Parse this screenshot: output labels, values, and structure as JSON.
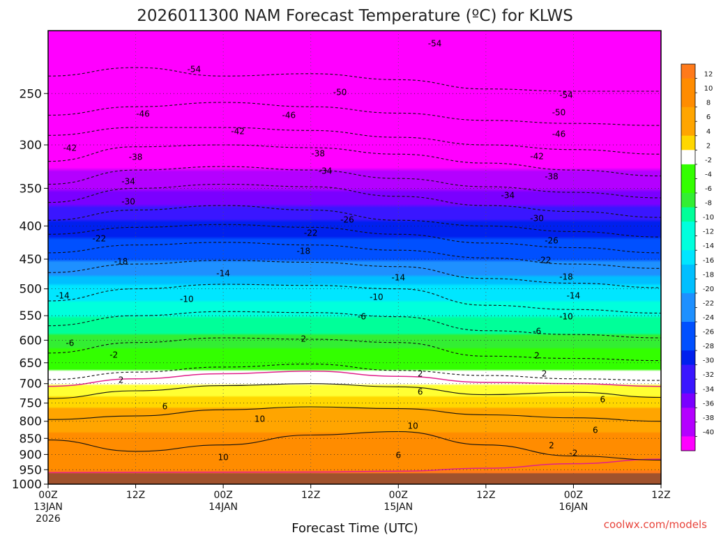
{
  "chart_data": {
    "type": "heatmap",
    "title": "2026011300 NAM Forecast Temperature (ºC) for KLWS",
    "xlabel": "Forecast Time (UTC)",
    "ylabel": "",
    "credit": "coolwx.com/models",
    "y_scale": "log",
    "y_inverted": true,
    "ylim": [
      1000,
      200
    ],
    "y_ticks": [
      "250",
      "300",
      "350",
      "400",
      "450",
      "500",
      "550",
      "600",
      "650",
      "700",
      "750",
      "800",
      "850",
      "900",
      "950",
      "1000"
    ],
    "xlim": [
      0,
      84
    ],
    "x_ticks": [
      {
        "h": 0,
        "label": "00Z",
        "sub": "13JAN",
        "sub2": "2026"
      },
      {
        "h": 12,
        "label": "12Z",
        "sub": "",
        "sub2": ""
      },
      {
        "h": 24,
        "label": "00Z",
        "sub": "14JAN",
        "sub2": ""
      },
      {
        "h": 36,
        "label": "12Z",
        "sub": "",
        "sub2": ""
      },
      {
        "h": 48,
        "label": "00Z",
        "sub": "15JAN",
        "sub2": ""
      },
      {
        "h": 60,
        "label": "12Z",
        "sub": "",
        "sub2": ""
      },
      {
        "h": 72,
        "label": "00Z",
        "sub": "16JAN",
        "sub2": ""
      },
      {
        "h": 84,
        "label": "12Z",
        "sub": "",
        "sub2": ""
      }
    ],
    "grid": true,
    "ground_level_hpa": 962,
    "colorbar": {
      "placement": "right",
      "labels": [
        "12",
        "10",
        "8",
        "6",
        "4",
        "2",
        "-2",
        "-4",
        "-6",
        "-8",
        "-10",
        "-12",
        "-14",
        "-16",
        "-18",
        "-20",
        "-22",
        "-24",
        "-26",
        "-28",
        "-30",
        "-32",
        "-34",
        "-36",
        "-38",
        "-40"
      ]
    },
    "contours": [
      {
        "t": -54,
        "p": [
          [
            0,
            235
          ],
          [
            12,
            228
          ],
          [
            24,
            235
          ],
          [
            36,
            233
          ],
          [
            48,
            238
          ],
          [
            60,
            246
          ],
          [
            72,
            248
          ],
          [
            84,
            248
          ]
        ]
      },
      {
        "t": -50,
        "p": [
          [
            0,
            270
          ],
          [
            12,
            262
          ],
          [
            24,
            258
          ],
          [
            36,
            262
          ],
          [
            48,
            268
          ],
          [
            60,
            275
          ],
          [
            72,
            278
          ],
          [
            84,
            280
          ]
        ]
      },
      {
        "t": -46,
        "p": [
          [
            0,
            290
          ],
          [
            12,
            282
          ],
          [
            24,
            282
          ],
          [
            36,
            285
          ],
          [
            48,
            292
          ],
          [
            60,
            300
          ],
          [
            72,
            305
          ],
          [
            84,
            310
          ]
        ]
      },
      {
        "t": -42,
        "p": [
          [
            0,
            318
          ],
          [
            12,
            302
          ],
          [
            24,
            300
          ],
          [
            36,
            303
          ],
          [
            48,
            310
          ],
          [
            60,
            320
          ],
          [
            72,
            328
          ],
          [
            84,
            335
          ]
        ]
      },
      {
        "t": -38,
        "p": [
          [
            0,
            345
          ],
          [
            12,
            328
          ],
          [
            24,
            324
          ],
          [
            36,
            328
          ],
          [
            48,
            338
          ],
          [
            60,
            348
          ],
          [
            72,
            355
          ],
          [
            84,
            362
          ]
        ]
      },
      {
        "t": -34,
        "p": [
          [
            0,
            368
          ],
          [
            12,
            350
          ],
          [
            24,
            345
          ],
          [
            36,
            348
          ],
          [
            48,
            360
          ],
          [
            60,
            372
          ],
          [
            72,
            380
          ],
          [
            84,
            388
          ]
        ]
      },
      {
        "t": -30,
        "p": [
          [
            0,
            392
          ],
          [
            12,
            378
          ],
          [
            24,
            372
          ],
          [
            36,
            378
          ],
          [
            48,
            392
          ],
          [
            60,
            400
          ],
          [
            72,
            408
          ],
          [
            84,
            416
          ]
        ]
      },
      {
        "t": -26,
        "p": [
          [
            0,
            412
          ],
          [
            12,
            402
          ],
          [
            24,
            398
          ],
          [
            36,
            402
          ],
          [
            48,
            412
          ],
          [
            60,
            425
          ],
          [
            72,
            432
          ],
          [
            84,
            440
          ]
        ]
      },
      {
        "t": -22,
        "p": [
          [
            0,
            440
          ],
          [
            12,
            428
          ],
          [
            24,
            424
          ],
          [
            36,
            428
          ],
          [
            48,
            436
          ],
          [
            60,
            448
          ],
          [
            72,
            458
          ],
          [
            84,
            465
          ]
        ]
      },
      {
        "t": -18,
        "p": [
          [
            0,
            472
          ],
          [
            12,
            458
          ],
          [
            24,
            452
          ],
          [
            36,
            455
          ],
          [
            48,
            462
          ],
          [
            60,
            482
          ],
          [
            72,
            490
          ],
          [
            84,
            498
          ]
        ]
      },
      {
        "t": -14,
        "p": [
          [
            0,
            522
          ],
          [
            12,
            500
          ],
          [
            24,
            492
          ],
          [
            36,
            494
          ],
          [
            48,
            500
          ],
          [
            60,
            530
          ],
          [
            72,
            538
          ],
          [
            84,
            545
          ]
        ]
      },
      {
        "t": -10,
        "p": [
          [
            0,
            570
          ],
          [
            12,
            550
          ],
          [
            24,
            542
          ],
          [
            36,
            544
          ],
          [
            48,
            552
          ],
          [
            60,
            580
          ],
          [
            72,
            588
          ],
          [
            84,
            595
          ]
        ]
      },
      {
        "t": -6,
        "p": [
          [
            0,
            628
          ],
          [
            12,
            605
          ],
          [
            24,
            595
          ],
          [
            36,
            598
          ],
          [
            48,
            605
          ],
          [
            60,
            635
          ],
          [
            72,
            640
          ],
          [
            84,
            645
          ]
        ]
      },
      {
        "t": -2,
        "p": [
          [
            0,
            690
          ],
          [
            12,
            672
          ],
          [
            24,
            660
          ],
          [
            36,
            653
          ],
          [
            48,
            668
          ],
          [
            60,
            680
          ],
          [
            72,
            688
          ],
          [
            84,
            692
          ]
        ]
      },
      {
        "t": 2,
        "p": [
          [
            0,
            738
          ],
          [
            12,
            718
          ],
          [
            24,
            705
          ],
          [
            36,
            700
          ],
          [
            48,
            708
          ],
          [
            60,
            728
          ],
          [
            72,
            722
          ],
          [
            84,
            735
          ]
        ]
      },
      {
        "t": 6,
        "p": [
          [
            0,
            795
          ],
          [
            12,
            785
          ],
          [
            24,
            768
          ],
          [
            36,
            760
          ],
          [
            48,
            765
          ],
          [
            60,
            782
          ],
          [
            72,
            790
          ],
          [
            84,
            800
          ]
        ]
      },
      {
        "t": 10,
        "p": [
          [
            0,
            855
          ],
          [
            12,
            890
          ],
          [
            24,
            870
          ],
          [
            36,
            840
          ],
          [
            48,
            830
          ],
          [
            60,
            870
          ],
          [
            72,
            905
          ],
          [
            84,
            918
          ]
        ]
      }
    ],
    "contour_labels": [
      {
        "text": "-54",
        "x": 20,
        "y": 100
      },
      {
        "text": "-54",
        "x": 53,
        "y": 63
      },
      {
        "text": "-54",
        "x": 71,
        "y": 137
      },
      {
        "text": "-50",
        "x": 40,
        "y": 133
      },
      {
        "text": "-50",
        "x": 70,
        "y": 162
      },
      {
        "text": "-46",
        "x": 13,
        "y": 164
      },
      {
        "text": "-46",
        "x": 33,
        "y": 166
      },
      {
        "text": "-46",
        "x": 70,
        "y": 193
      },
      {
        "text": "-42",
        "x": 3,
        "y": 213
      },
      {
        "text": "-42",
        "x": 26,
        "y": 189
      },
      {
        "text": "-42",
        "x": 67,
        "y": 225
      },
      {
        "text": "-38",
        "x": 12,
        "y": 226
      },
      {
        "text": "-38",
        "x": 37,
        "y": 221
      },
      {
        "text": "-38",
        "x": 69,
        "y": 254
      },
      {
        "text": "-34",
        "x": 11,
        "y": 261
      },
      {
        "text": "-34",
        "x": 38,
        "y": 246
      },
      {
        "text": "-34",
        "x": 63,
        "y": 281
      },
      {
        "text": "-30",
        "x": 11,
        "y": 290
      },
      {
        "text": "-30",
        "x": 67,
        "y": 314
      },
      {
        "text": "-26",
        "x": 41,
        "y": 316
      },
      {
        "text": "-26",
        "x": 69,
        "y": 346
      },
      {
        "text": "-22",
        "x": 7,
        "y": 343
      },
      {
        "text": "-22",
        "x": 36,
        "y": 335
      },
      {
        "text": "-22",
        "x": 68,
        "y": 374
      },
      {
        "text": "-18",
        "x": 10,
        "y": 376
      },
      {
        "text": "-18",
        "x": 35,
        "y": 361
      },
      {
        "text": "-18",
        "x": 71,
        "y": 398
      },
      {
        "text": "-14",
        "x": 2,
        "y": 425
      },
      {
        "text": "-14",
        "x": 24,
        "y": 393
      },
      {
        "text": "-14",
        "x": 48,
        "y": 399
      },
      {
        "text": "-14",
        "x": 72,
        "y": 425
      },
      {
        "text": "-10",
        "x": 19,
        "y": 430
      },
      {
        "text": "-10",
        "x": 45,
        "y": 427
      },
      {
        "text": "-10",
        "x": 71,
        "y": 455
      },
      {
        "text": "-6",
        "x": 3,
        "y": 493
      },
      {
        "text": "-6",
        "x": 43,
        "y": 455
      },
      {
        "text": "-6",
        "x": 67,
        "y": 476
      },
      {
        "text": "-2",
        "x": 9,
        "y": 510
      },
      {
        "text": "2",
        "x": 35,
        "y": 487
      },
      {
        "text": "2",
        "x": 67,
        "y": 511
      },
      {
        "text": "2",
        "x": 10,
        "y": 546
      },
      {
        "text": "2",
        "x": 51,
        "y": 537
      },
      {
        "text": "2",
        "x": 68,
        "y": 537
      },
      {
        "text": "6",
        "x": 16,
        "y": 584
      },
      {
        "text": "6",
        "x": 51,
        "y": 563
      },
      {
        "text": "6",
        "x": 76,
        "y": 574
      },
      {
        "text": "6",
        "x": 75,
        "y": 618
      },
      {
        "text": "10",
        "x": 29,
        "y": 602
      },
      {
        "text": "10",
        "x": 50,
        "y": 612
      },
      {
        "text": "10",
        "x": 24,
        "y": 657
      },
      {
        "text": "6",
        "x": 48,
        "y": 654
      },
      {
        "text": "2",
        "x": 69,
        "y": 640
      },
      {
        "text": "-2",
        "x": 72,
        "y": 651
      }
    ]
  }
}
